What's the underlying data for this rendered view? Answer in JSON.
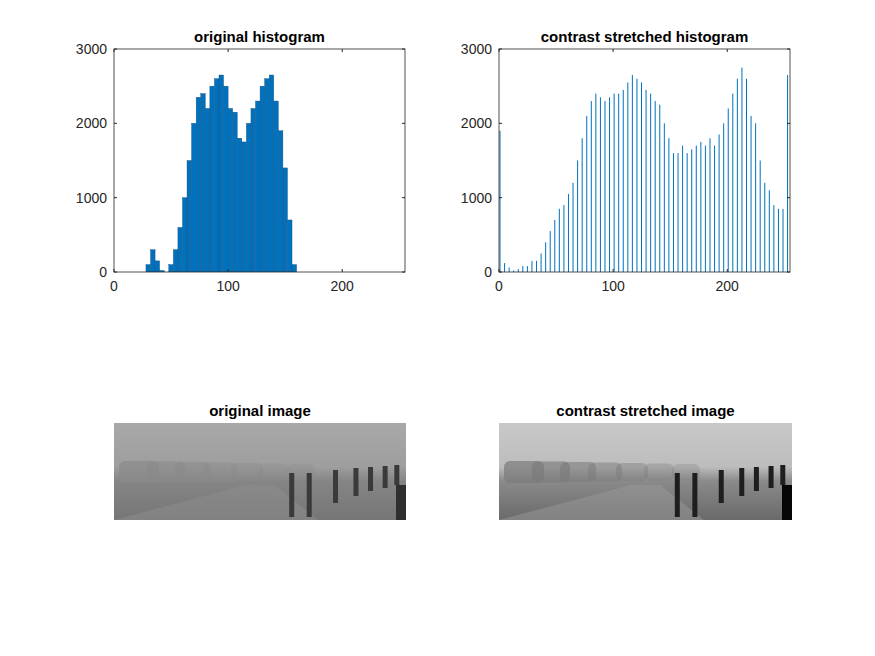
{
  "chart_data": [
    {
      "type": "histogram",
      "title": "original histogram",
      "color": "#0072bd",
      "bins": [
        0,
        4,
        8,
        12,
        16,
        20,
        24,
        28,
        32,
        36,
        40,
        44,
        48,
        52,
        56,
        60,
        64,
        68,
        72,
        76,
        80,
        84,
        88,
        92,
        96,
        100,
        104,
        108,
        112,
        116,
        120,
        124,
        128,
        132,
        136,
        140,
        144,
        148,
        152,
        156,
        160,
        164,
        168,
        172,
        176,
        180,
        184,
        188,
        192,
        196,
        200,
        204,
        208,
        212,
        216,
        220,
        224,
        228,
        232,
        236,
        240,
        244,
        248,
        252,
        256
      ],
      "counts": [
        0,
        0,
        0,
        0,
        0,
        0,
        0,
        100,
        300,
        150,
        20,
        0,
        100,
        300,
        600,
        1000,
        1500,
        2000,
        2350,
        2400,
        2200,
        2500,
        2600,
        2650,
        2500,
        2200,
        2150,
        1800,
        1750,
        2000,
        2200,
        2300,
        2500,
        2600,
        2650,
        2300,
        1900,
        1400,
        700,
        100,
        0,
        0,
        0,
        0,
        0,
        0,
        0,
        0,
        0,
        0,
        0,
        0,
        0,
        0,
        0,
        0,
        0,
        0,
        0,
        0,
        0,
        0,
        0,
        0
      ],
      "xlim": [
        0,
        255
      ],
      "ylim": [
        0,
        3000
      ],
      "xticks": [
        0,
        100,
        200
      ],
      "yticks": [
        0,
        1000,
        2000,
        3000
      ],
      "grid": false
    },
    {
      "type": "histogram",
      "title": "contrast stretched histogram",
      "color": "#0072bd",
      "line_style": "stem",
      "bins": [
        0,
        4,
        8,
        12,
        16,
        20,
        24,
        28,
        32,
        36,
        40,
        44,
        48,
        52,
        56,
        60,
        64,
        68,
        72,
        76,
        80,
        84,
        88,
        92,
        96,
        100,
        104,
        108,
        112,
        116,
        120,
        124,
        128,
        132,
        136,
        140,
        144,
        148,
        152,
        156,
        160,
        164,
        168,
        172,
        176,
        180,
        184,
        188,
        192,
        196,
        200,
        204,
        208,
        212,
        216,
        220,
        224,
        228,
        232,
        236,
        240,
        244,
        248,
        252,
        256
      ],
      "counts": [
        1900,
        120,
        60,
        20,
        40,
        80,
        80,
        150,
        150,
        250,
        400,
        550,
        700,
        850,
        900,
        1050,
        1200,
        1500,
        1800,
        2100,
        2300,
        2400,
        2350,
        2300,
        2350,
        2400,
        2400,
        2450,
        2550,
        2650,
        2600,
        2550,
        2450,
        2400,
        2300,
        2250,
        2000,
        1800,
        1600,
        1600,
        1700,
        1600,
        1650,
        1700,
        1750,
        1700,
        1800,
        1700,
        1850,
        2000,
        2200,
        2400,
        2600,
        2750,
        2600,
        2100,
        2000,
        1500,
        1200,
        1100,
        900,
        850,
        850,
        2650
      ],
      "xlim": [
        0,
        255
      ],
      "ylim": [
        0,
        3000
      ],
      "xticks": [
        0,
        100,
        200
      ],
      "yticks": [
        0,
        1000,
        2000,
        3000
      ],
      "grid": false
    },
    {
      "type": "image",
      "title": "original image"
    },
    {
      "type": "image",
      "title": "contrast stretched image"
    }
  ]
}
